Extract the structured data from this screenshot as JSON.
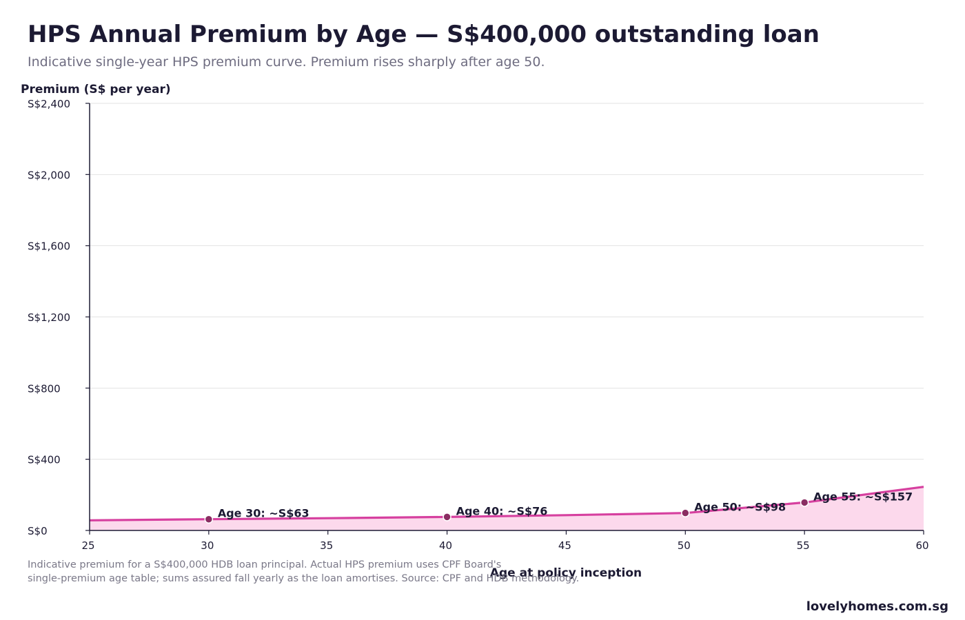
{
  "title": "HPS Annual Premium by Age — S$400,000 outstanding loan",
  "subtitle": "Indicative single-year HPS premium curve. Premium rises sharply after age 50.",
  "footnote": {
    "line1": "Indicative premium for a S$400,000 HDB loan principal. Actual HPS premium uses CPF Board's",
    "line2": "single-premium age table; sums assured fall yearly as the loan amortises. Source: CPF and HDB methodology."
  },
  "brand": "lovelyhomes.com.sg",
  "colors": {
    "line": "#d6409f",
    "area": "#fcd9ec",
    "marker": "#8a2d62",
    "axis": "#1c1a33",
    "grid": "#e2e2e2"
  },
  "chart_data": {
    "type": "area",
    "xlabel": "Age at policy inception",
    "ylabel": "Premium (S$ per year)",
    "xlim": [
      25,
      60
    ],
    "ylim": [
      0,
      2400
    ],
    "x_ticks": [
      "25",
      "30",
      "35",
      "40",
      "45",
      "50",
      "55",
      "60"
    ],
    "x_tick_values": [
      25,
      30,
      35,
      40,
      45,
      50,
      55,
      60
    ],
    "y_ticks": [
      "S$0",
      "S$400",
      "S$800",
      "S$1,200",
      "S$1,600",
      "S$2,000",
      "S$2,400"
    ],
    "y_tick_values": [
      0,
      400,
      800,
      1200,
      1600,
      2000,
      2400
    ],
    "grid": true,
    "series": [
      {
        "x": [
          25,
          30,
          35,
          40,
          45,
          50,
          55,
          60
        ],
        "y": [
          57,
          63,
          69,
          76,
          86,
          98,
          157,
          245
        ]
      }
    ],
    "annotations": [
      {
        "x": 30,
        "y": 63,
        "text": "Age 30: ~S$63"
      },
      {
        "x": 40,
        "y": 76,
        "text": "Age 40: ~S$76"
      },
      {
        "x": 50,
        "y": 98,
        "text": "Age 50: ~S$98"
      },
      {
        "x": 55,
        "y": 157,
        "text": "Age 55: ~S$157"
      }
    ]
  }
}
